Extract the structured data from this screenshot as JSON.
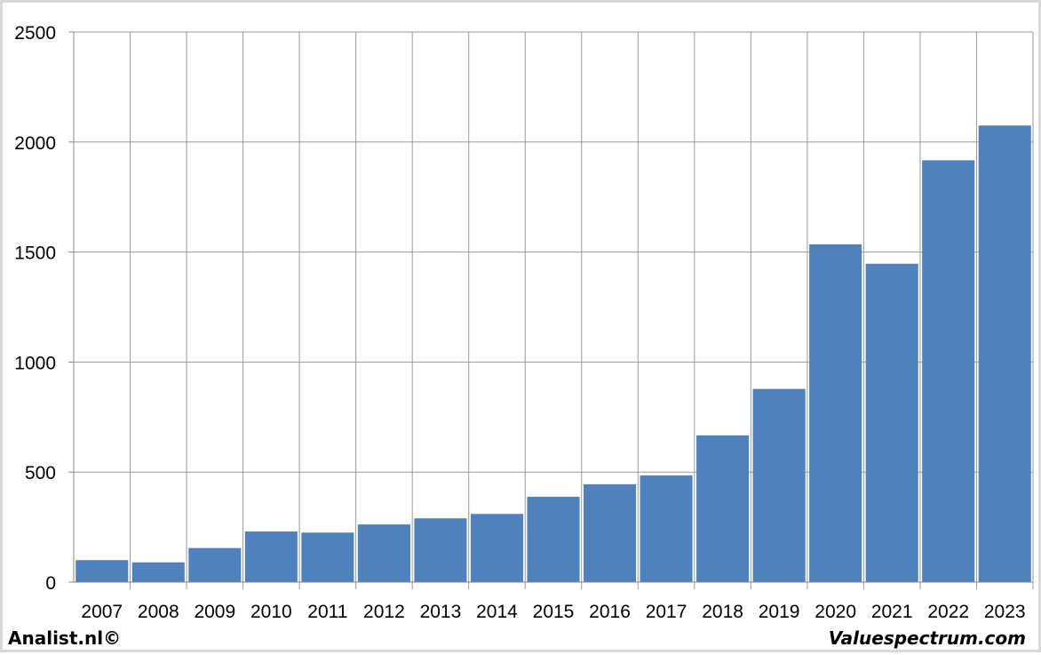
{
  "colors": {
    "bar": "#4f81bd",
    "grid": "#9a9a9a",
    "axis": "#888888",
    "frame": "#d9d9d9"
  },
  "footer": {
    "left": "Analist.nl©",
    "right": "Valuespectrum.com"
  },
  "chart_data": {
    "type": "bar",
    "title": "",
    "xlabel": "",
    "ylabel": "",
    "categories": [
      "2007",
      "2008",
      "2009",
      "2010",
      "2011",
      "2012",
      "2013",
      "2014",
      "2015",
      "2016",
      "2017",
      "2018",
      "2019",
      "2020",
      "2021",
      "2022",
      "2023"
    ],
    "values": [
      100,
      90,
      155,
      230,
      225,
      262,
      290,
      310,
      388,
      445,
      485,
      667,
      878,
      1535,
      1447,
      1917,
      2075
    ],
    "ylim": [
      0,
      2500
    ],
    "yticks": [
      0,
      500,
      1000,
      1500,
      2000,
      2500
    ],
    "grid": true,
    "legend": "none"
  }
}
